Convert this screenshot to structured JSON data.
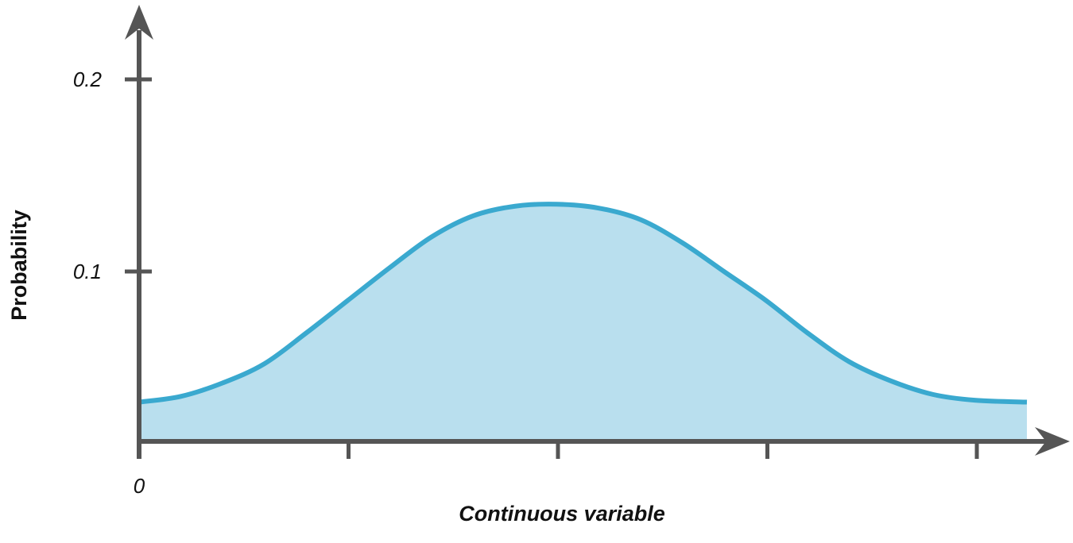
{
  "chart_data": {
    "type": "area",
    "xlabel": "Continuous variable",
    "ylabel": "Probability",
    "x_tick_labels": [
      "0",
      "",
      "",
      "",
      ""
    ],
    "x_tick_values": [
      0,
      1,
      2,
      3,
      4
    ],
    "y_tick_labels": [
      "0.2",
      "0.1"
    ],
    "y_tick_values": [
      0.2,
      0.1
    ],
    "xlim": [
      0,
      4.25
    ],
    "ylim": [
      0,
      0.22
    ],
    "grid": false,
    "legend": "none",
    "colors": {
      "axis": "#555555",
      "line": "#3aa9cf",
      "fill": "#b9dfee"
    },
    "x": [
      0,
      0.2,
      0.4,
      0.6,
      0.8,
      1.0,
      1.2,
      1.4,
      1.6,
      1.8,
      2.0,
      2.2,
      2.4,
      2.6,
      2.8,
      3.0,
      3.2,
      3.4,
      3.6,
      3.8,
      4.0,
      4.25
    ],
    "y": [
      0.032,
      0.035,
      0.042,
      0.052,
      0.068,
      0.085,
      0.102,
      0.118,
      0.129,
      0.134,
      0.135,
      0.133,
      0.127,
      0.115,
      0.1,
      0.085,
      0.068,
      0.053,
      0.043,
      0.036,
      0.033,
      0.032
    ]
  }
}
